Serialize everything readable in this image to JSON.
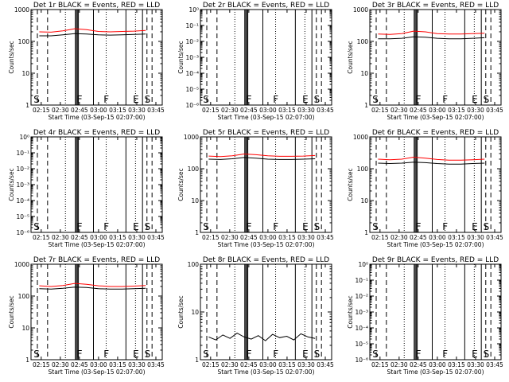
{
  "chart_data": [
    {
      "type": "line",
      "title": "Det 1r BLACK = Events, RED = LLD",
      "ylabel": "Counts/sec",
      "xlabel": "Start Time (03-Sep-15 02:07:00)",
      "yscale": "log",
      "ylim": [
        1,
        1000
      ],
      "y_ticks": [
        "1",
        "10",
        "100",
        "1000"
      ],
      "x_ticks": [
        "02:15",
        "02:30",
        "02:45",
        "03:00",
        "03:15",
        "03:30",
        "03:45"
      ],
      "markers": [
        "S",
        "F",
        "F",
        "E",
        "S"
      ],
      "series": [
        {
          "color": "#000000",
          "values": [
            150,
            150,
            160,
            175,
            170,
            160,
            158,
            160,
            165,
            170
          ]
        },
        {
          "color": "#ff0000",
          "values": [
            200,
            195,
            215,
            250,
            235,
            205,
            200,
            205,
            210,
            220
          ]
        }
      ]
    },
    {
      "type": "line",
      "title": "Det 2r BLACK = Events, RED = LLD",
      "ylabel": "Counts/sec",
      "xlabel": "Start Time (03-Sep-15 02:07:00)",
      "yscale": "log",
      "ylim": [
        1e-06,
        1
      ],
      "y_ticks": [
        "10⁰",
        "10⁻¹",
        "10⁻²",
        "10⁻³",
        "10⁻⁴",
        "10⁻⁵",
        "10⁻⁶"
      ],
      "x_ticks": [
        "02:15",
        "02:30",
        "02:45",
        "03:00",
        "03:15",
        "03:30",
        "03:45"
      ],
      "markers": [
        "S",
        "F",
        "F",
        "E",
        "S"
      ],
      "series": []
    },
    {
      "type": "line",
      "title": "Det 3r BLACK = Events, RED = LLD",
      "ylabel": "Counts/sec",
      "xlabel": "Start Time (03-Sep-15 02:07:00)",
      "yscale": "log",
      "ylim": [
        1,
        1000
      ],
      "y_ticks": [
        "1",
        "10",
        "100",
        "1000"
      ],
      "x_ticks": [
        "02:15",
        "02:30",
        "02:45",
        "03:00",
        "03:15",
        "03:30",
        "03:45"
      ],
      "markers": [
        "S",
        "F",
        "F",
        "E",
        "S"
      ],
      "series": [
        {
          "color": "#000000",
          "values": [
            120,
            120,
            125,
            140,
            135,
            125,
            120,
            120,
            125,
            130
          ]
        },
        {
          "color": "#ff0000",
          "values": [
            170,
            165,
            175,
            210,
            200,
            175,
            170,
            170,
            175,
            180
          ]
        }
      ]
    },
    {
      "type": "line",
      "title": "Det 4r BLACK = Events, RED = LLD",
      "ylabel": "Counts/sec",
      "xlabel": "Start Time (03-Sep-15 02:07:00)",
      "yscale": "log",
      "ylim": [
        1e-06,
        1
      ],
      "y_ticks": [
        "10⁰",
        "10⁻¹",
        "10⁻²",
        "10⁻³",
        "10⁻⁴",
        "10⁻⁵",
        "10⁻⁶"
      ],
      "x_ticks": [
        "02:15",
        "02:30",
        "02:45",
        "03:00",
        "03:15",
        "03:30",
        "03:45"
      ],
      "markers": [
        "S",
        "F",
        "F",
        "E",
        "S"
      ],
      "series": []
    },
    {
      "type": "line",
      "title": "Det 5r BLACK = Events, RED = LLD",
      "ylabel": "Counts/sec",
      "xlabel": "Start Time (03-Sep-15 02:07:00)",
      "yscale": "log",
      "ylim": [
        1,
        1000
      ],
      "y_ticks": [
        "1",
        "10",
        "100",
        "1000"
      ],
      "x_ticks": [
        "02:15",
        "02:30",
        "02:45",
        "03:00",
        "03:15",
        "03:30",
        "03:45"
      ],
      "markers": [
        "S",
        "F",
        "F",
        "E",
        "S"
      ],
      "series": [
        {
          "color": "#000000",
          "values": [
            200,
            195,
            205,
            225,
            215,
            200,
            195,
            195,
            200,
            205
          ]
        },
        {
          "color": "#ff0000",
          "values": [
            250,
            240,
            255,
            290,
            275,
            255,
            245,
            245,
            250,
            260
          ]
        }
      ]
    },
    {
      "type": "line",
      "title": "Det 6r BLACK = Events, RED = LLD",
      "ylabel": "Counts/sec",
      "xlabel": "Start Time (03-Sep-15 02:07:00)",
      "yscale": "log",
      "ylim": [
        1,
        1000
      ],
      "y_ticks": [
        "1",
        "10",
        "100",
        "1000"
      ],
      "x_ticks": [
        "02:15",
        "02:30",
        "02:45",
        "03:00",
        "03:15",
        "03:30",
        "03:45"
      ],
      "markers": [
        "S",
        "F",
        "F",
        "E",
        "S"
      ],
      "series": [
        {
          "color": "#000000",
          "values": [
            150,
            145,
            150,
            160,
            155,
            145,
            140,
            140,
            145,
            150
          ]
        },
        {
          "color": "#ff0000",
          "values": [
            200,
            190,
            200,
            230,
            215,
            195,
            185,
            185,
            190,
            200
          ]
        }
      ]
    },
    {
      "type": "line",
      "title": "Det 7r BLACK = Events, RED = LLD",
      "ylabel": "Counts/sec",
      "xlabel": "Start Time (03-Sep-15 02:07:00)",
      "yscale": "log",
      "ylim": [
        1,
        1000
      ],
      "y_ticks": [
        "1",
        "10",
        "100",
        "1000"
      ],
      "x_ticks": [
        "02:15",
        "02:30",
        "02:45",
        "03:00",
        "03:15",
        "03:30",
        "03:45"
      ],
      "markers": [
        "S",
        "F",
        "F",
        "E",
        "S"
      ],
      "series": [
        {
          "color": "#000000",
          "values": [
            170,
            165,
            175,
            190,
            185,
            170,
            165,
            165,
            170,
            175
          ]
        },
        {
          "color": "#ff0000",
          "values": [
            210,
            200,
            215,
            250,
            235,
            210,
            200,
            200,
            205,
            215
          ]
        }
      ]
    },
    {
      "type": "line",
      "title": "Det 8r BLACK = Events, RED = LLD",
      "ylabel": "Counts/sec",
      "xlabel": "Start Time (03-Sep-15 02:07:00)",
      "yscale": "log",
      "ylim": [
        1,
        100
      ],
      "y_ticks": [
        "1",
        "10",
        "100"
      ],
      "x_ticks": [
        "02:15",
        "02:30",
        "02:45",
        "03:00",
        "03:15",
        "03:30",
        "03:45"
      ],
      "markers": [
        "S",
        "F",
        "F",
        "E",
        "S"
      ],
      "series": [
        {
          "color": "#000000",
          "values": [
            3,
            2.6,
            3.3,
            2.8,
            3.6,
            3,
            2.7,
            3.2,
            2.5,
            3.4,
            2.9,
            3.1,
            2.6,
            3.5,
            3,
            2.8
          ]
        }
      ]
    },
    {
      "type": "line",
      "title": "Det 9r BLACK = Events, RED = LLD",
      "ylabel": "Counts/sec",
      "xlabel": "Start Time (03-Sep-15 02:07:00)",
      "yscale": "log",
      "ylim": [
        1e-06,
        1
      ],
      "y_ticks": [
        "10⁰",
        "10⁻¹",
        "10⁻²",
        "10⁻³",
        "10⁻⁴",
        "10⁻⁵",
        "10⁻⁶"
      ],
      "x_ticks": [
        "02:15",
        "02:30",
        "02:45",
        "03:00",
        "03:15",
        "03:30",
        "03:45"
      ],
      "markers": [
        "S",
        "F",
        "F",
        "E",
        "S"
      ],
      "series": []
    }
  ]
}
